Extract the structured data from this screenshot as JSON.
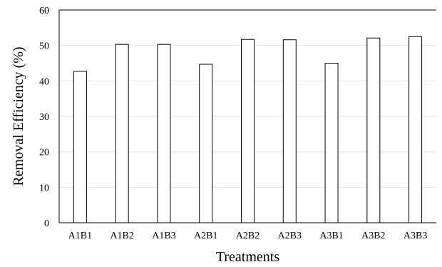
{
  "chart_data": {
    "type": "bar",
    "title": "",
    "xlabel": "Treatments",
    "ylabel": "Removal Efficiency (%)",
    "ylim": [
      0,
      60
    ],
    "yticks": [
      0,
      10,
      20,
      30,
      40,
      50,
      60
    ],
    "grid": true,
    "categories": [
      "A1B1",
      "A1B2",
      "A1B3",
      "A2B1",
      "A2B2",
      "A2B3",
      "A3B1",
      "A3B2",
      "A3B3"
    ],
    "values": [
      42.7,
      50.3,
      50.3,
      44.7,
      51.7,
      51.6,
      45.0,
      52.1,
      52.5
    ],
    "bar_color": "#ffffff",
    "edge_color": "#000000"
  }
}
